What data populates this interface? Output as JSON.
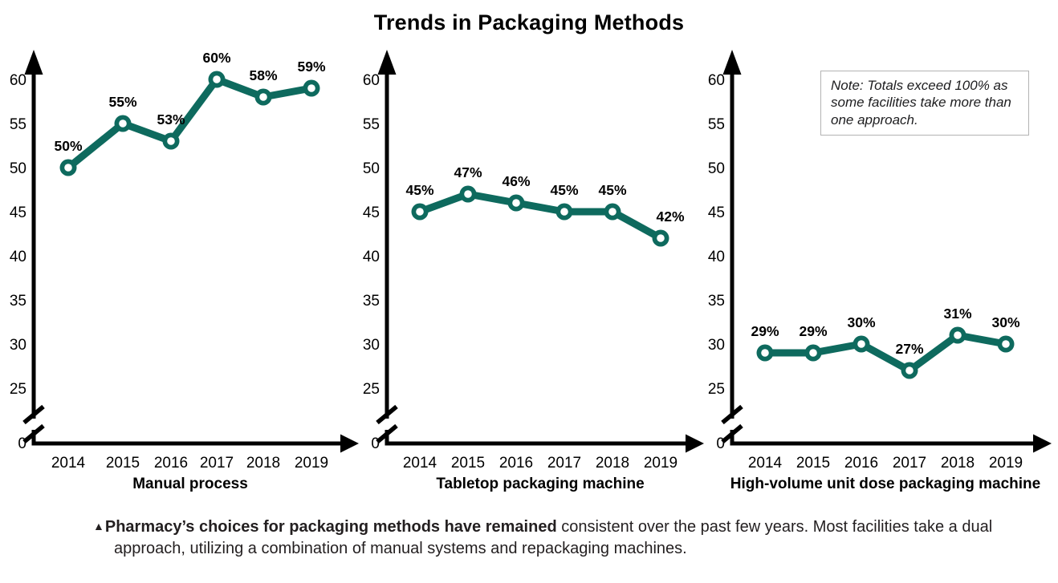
{
  "title": "Trends in Packaging Methods",
  "note": {
    "text": "Note: Totals exceed 100% as some facilities take more than one approach."
  },
  "caption": {
    "marker": "▲",
    "bold": "Pharmacy’s choices for packaging methods have remained",
    "regular": " consistent over the past few years. Most facilities take a dual approach, utilizing a combination of manual systems and repackaging machines."
  },
  "colors": {
    "line": "#0E6A5E",
    "marker_center": "#ffffff",
    "axis": "#000000",
    "note_border": "#b3b3b3"
  },
  "chart_data": [
    {
      "type": "line",
      "title": "Manual process",
      "x": [
        "2014",
        "2015",
        "2016",
        "2017",
        "2018",
        "2019"
      ],
      "values": [
        50,
        55,
        53,
        60,
        58,
        59
      ],
      "point_labels": [
        "50%",
        "55%",
        "53%",
        "60%",
        "58%",
        "59%"
      ],
      "xlabel": "Manual process",
      "ylabel": "",
      "yticks": [
        0,
        25,
        30,
        35,
        40,
        45,
        50,
        55,
        60
      ],
      "ylim": [
        0,
        62
      ],
      "axis_break": true,
      "grid": false,
      "legend": "none",
      "unit": "%"
    },
    {
      "type": "line",
      "title": "Tabletop packaging machine",
      "x": [
        "2014",
        "2015",
        "2016",
        "2017",
        "2018",
        "2019"
      ],
      "values": [
        45,
        47,
        46,
        45,
        45,
        42
      ],
      "point_labels": [
        "45%",
        "47%",
        "46%",
        "45%",
        "45%",
        "42%"
      ],
      "xlabel": "Tabletop packaging machine",
      "ylabel": "",
      "yticks": [
        0,
        25,
        30,
        35,
        40,
        45,
        50,
        55,
        60
      ],
      "ylim": [
        0,
        62
      ],
      "axis_break": true,
      "grid": false,
      "legend": "none",
      "unit": "%"
    },
    {
      "type": "line",
      "title": "High-volume unit dose packaging machine",
      "x": [
        "2014",
        "2015",
        "2016",
        "2017",
        "2018",
        "2019"
      ],
      "values": [
        29,
        29,
        30,
        27,
        31,
        30
      ],
      "point_labels": [
        "29%",
        "29%",
        "30%",
        "27%",
        "31%",
        "30%"
      ],
      "xlabel": "High-volume unit dose packaging machine",
      "ylabel": "",
      "yticks": [
        0,
        25,
        30,
        35,
        40,
        45,
        50,
        55,
        60
      ],
      "ylim": [
        0,
        62
      ],
      "axis_break": true,
      "grid": false,
      "legend": "none",
      "unit": "%"
    }
  ]
}
